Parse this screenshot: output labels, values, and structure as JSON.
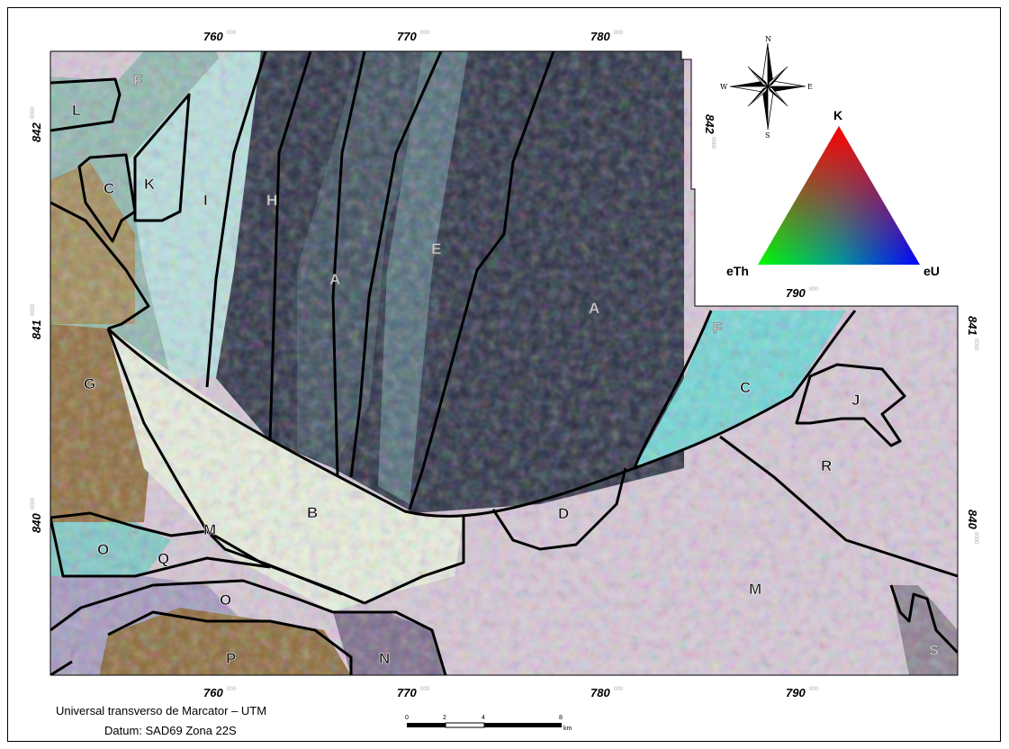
{
  "map": {
    "x_ticks_top": [
      {
        "value": "760",
        "sup": "000"
      },
      {
        "value": "770",
        "sup": "000"
      },
      {
        "value": "780",
        "sup": "000"
      }
    ],
    "x_ticks_top_right": {
      "value": "790",
      "sup": "000"
    },
    "x_ticks_bottom": [
      {
        "value": "760",
        "sup": "000"
      },
      {
        "value": "770",
        "sup": "000"
      },
      {
        "value": "780",
        "sup": "000"
      },
      {
        "value": "790",
        "sup": "000"
      }
    ],
    "y_ticks_left": [
      {
        "value": "842",
        "sup": "0000"
      },
      {
        "value": "841",
        "sup": "0000"
      },
      {
        "value": "840",
        "sup": "0000"
      }
    ],
    "y_ticks_right": [
      {
        "value": "842",
        "sup": "0000"
      },
      {
        "value": "841",
        "sup": "0000"
      },
      {
        "value": "840",
        "sup": "0000"
      }
    ],
    "units": {
      "L": "L",
      "F1": "F",
      "C1": "C",
      "K": "K",
      "I": "I",
      "H": "H",
      "A1": "A",
      "E": "E",
      "A2": "A",
      "G": "G",
      "F2": "F",
      "C2": "C",
      "J": "J",
      "R": "R",
      "D": "D",
      "B": "B",
      "M1": "M",
      "O1": "O",
      "Q": "Q",
      "O2": "O",
      "P": "P",
      "N": "N",
      "M2": "M",
      "S": "S"
    }
  },
  "legend": {
    "ternary": {
      "top": "K",
      "left": "eTh",
      "right": "eU"
    },
    "compass": {
      "n": "N",
      "s": "S",
      "e": "E",
      "w": "W"
    }
  },
  "scale_bar": {
    "labels": [
      "0",
      "2",
      "4",
      "8"
    ],
    "unit": "km"
  },
  "footer": {
    "projection": "Universal transverso de Marcator – UTM",
    "datum": "Datum: SAD69 Zona 22S"
  },
  "colors": {
    "dark_core": "#202638",
    "cyan": "#5fe0e0",
    "pink_white": "#e8d4e6",
    "brown": "#8c6a3a",
    "boundary": "#000000"
  }
}
